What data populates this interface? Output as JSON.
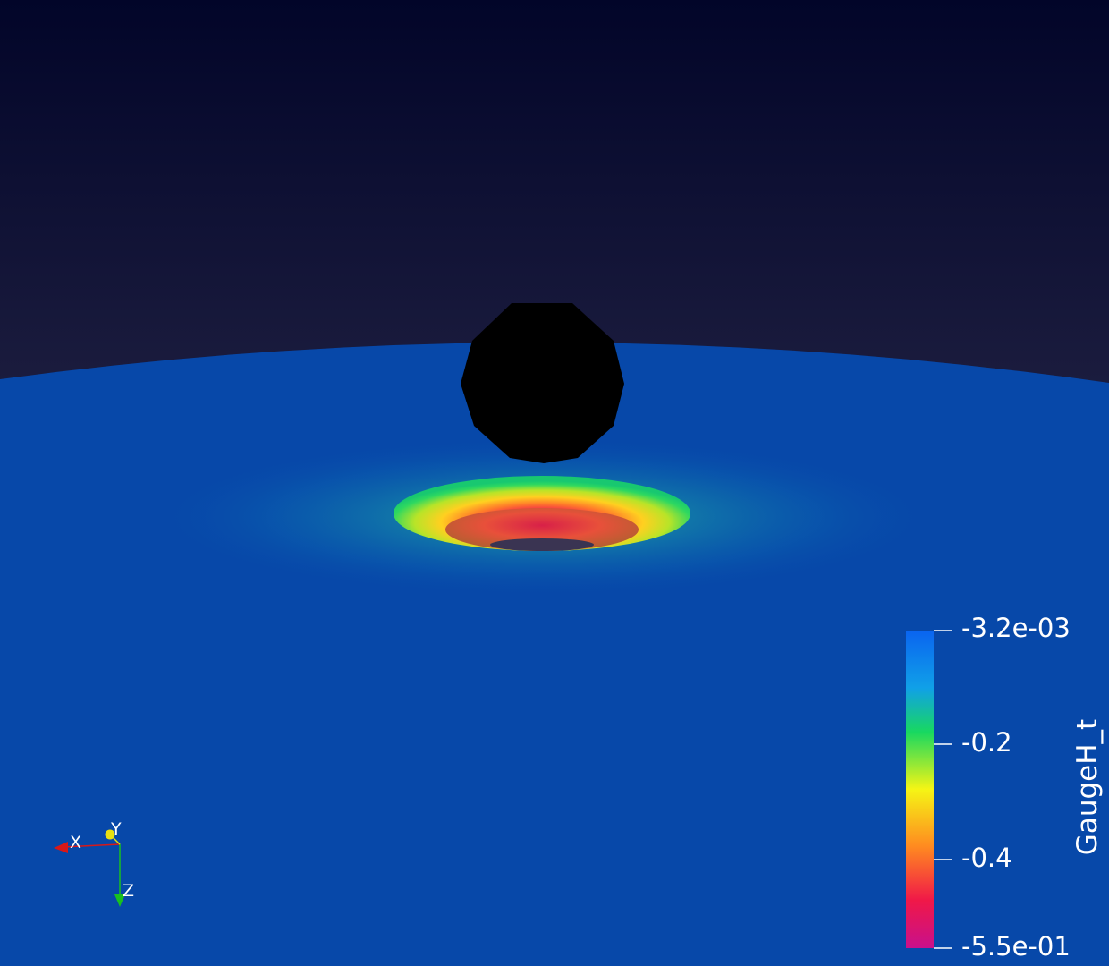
{
  "colorbar": {
    "title": "GaugeH_t",
    "labels": [
      "-3.2e-03",
      "-0.2",
      "-0.4",
      "-5.5e-01"
    ],
    "colors": [
      "#0a64f0",
      "#10c8e0",
      "#18d860",
      "#f5f515",
      "#ff8a20",
      "#f01848",
      "#c8108c"
    ]
  },
  "axes": {
    "x_label": "X",
    "y_label": "Y",
    "z_label": "Z",
    "x_color": "#d81818",
    "y_color": "#e8e010",
    "z_color": "#18c020"
  },
  "scene": {
    "background_top": "#020529",
    "background_bottom": "#2a2848",
    "surface_color": "#0748a9",
    "sphere_color": "#000000"
  }
}
